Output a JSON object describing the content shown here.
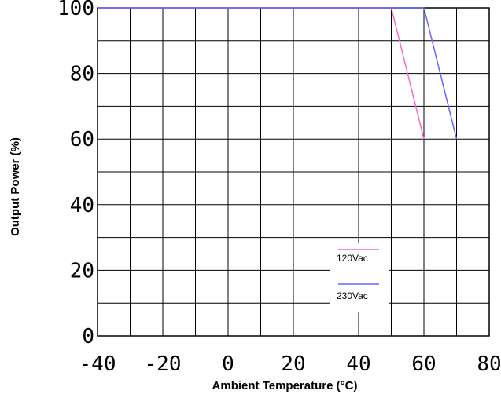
{
  "chart_data": {
    "type": "line",
    "xlabel": "Ambient Temperature (°C)",
    "ylabel": "Output Power (%)",
    "xlim": [
      -40,
      80
    ],
    "ylim": [
      0,
      100
    ],
    "x_ticks": [
      "-40",
      "-20",
      "0",
      "20",
      "40",
      "60",
      "80"
    ],
    "y_ticks": [
      "0",
      "20",
      "40",
      "60",
      "80",
      "100"
    ],
    "grid": true,
    "legend_position": "bottom-right inside plot",
    "series": [
      {
        "name": "120Vac",
        "color": "#ff66cc",
        "x": [
          -40,
          50,
          60
        ],
        "y": [
          100,
          100,
          60
        ]
      },
      {
        "name": "230Vac",
        "color": "#6666ff",
        "x": [
          -40,
          60,
          70
        ],
        "y": [
          100,
          100,
          60
        ]
      }
    ]
  }
}
